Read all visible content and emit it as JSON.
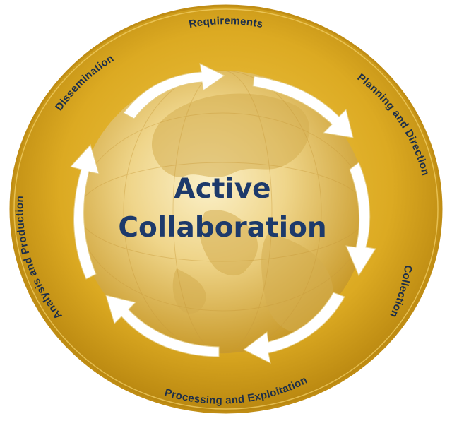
{
  "center": {
    "line1": "Active",
    "line2": "Collaboration"
  },
  "stages": {
    "requirements": "Requirements",
    "planning": "Planning and Direction",
    "collection": "Collection",
    "processing": "Processing and Exploitation",
    "analysis": "Analysis and Production",
    "dissemination": "Dissemination"
  },
  "colors": {
    "ring": "#d9a91c",
    "ring_dark": "#b9860c",
    "globe": "#e8c766",
    "text_dark": "#1c2e4a",
    "title": "#1d3a6b",
    "arrow": "#ffffff"
  }
}
